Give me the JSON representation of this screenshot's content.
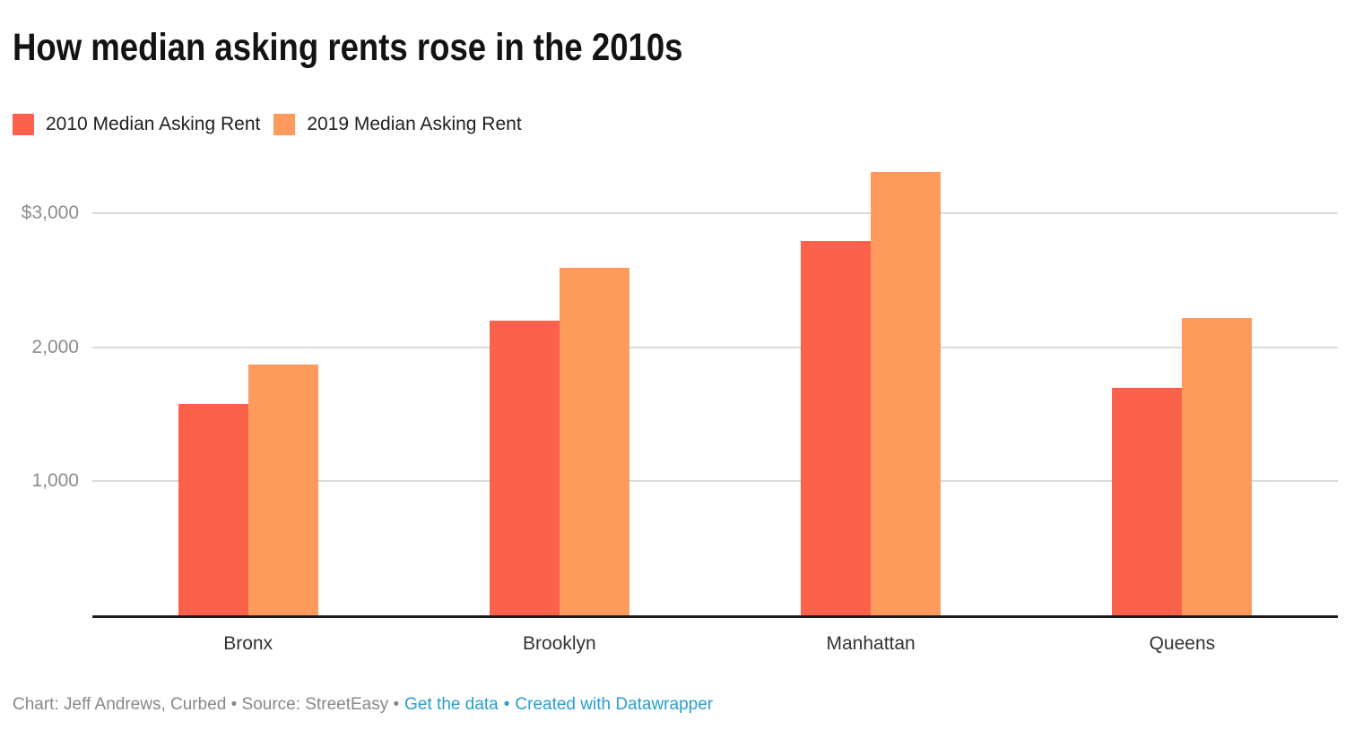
{
  "header": {
    "title": "How median asking rents rose in the 2010s"
  },
  "legend": {
    "items": [
      {
        "label": "2010 Median Asking Rent",
        "color": "#FC614C"
      },
      {
        "label": "2019 Median Asking Rent",
        "color": "#FD9A5C"
      }
    ]
  },
  "chart_data": {
    "type": "bar",
    "title": "How median asking rents rose in the 2010s",
    "categories": [
      "Bronx",
      "Brooklyn",
      "Manhattan",
      "Queens"
    ],
    "series": [
      {
        "name": "2010 Median Asking Rent",
        "color": "#FC614C",
        "values": [
          1575,
          2200,
          2795,
          1700
        ]
      },
      {
        "name": "2019 Median Asking Rent",
        "color": "#FD9A5C",
        "values": [
          1870,
          2590,
          3310,
          2220
        ]
      }
    ],
    "xlabel": "",
    "ylabel": "",
    "ylim": [
      0,
      3450
    ],
    "yticks": [
      {
        "value": 3000,
        "label": "$3,000"
      },
      {
        "value": 2000,
        "label": "2,000"
      },
      {
        "value": 1000,
        "label": "1,000"
      }
    ],
    "grid": "horizontal",
    "legend_position": "top-left",
    "gridline_color": "#dadada",
    "axis_line_color": "#1c1c1c",
    "tick_label_color": "#8c8c8c",
    "category_label_color": "#333333"
  },
  "footer": {
    "note": "Chart: Jeff Andrews, Curbed • Source: StreetEasy •",
    "get_data_label": "Get the data",
    "separator": "•",
    "datawrapper_label": "Created with Datawrapper",
    "link_color": "#2A9CD2"
  }
}
